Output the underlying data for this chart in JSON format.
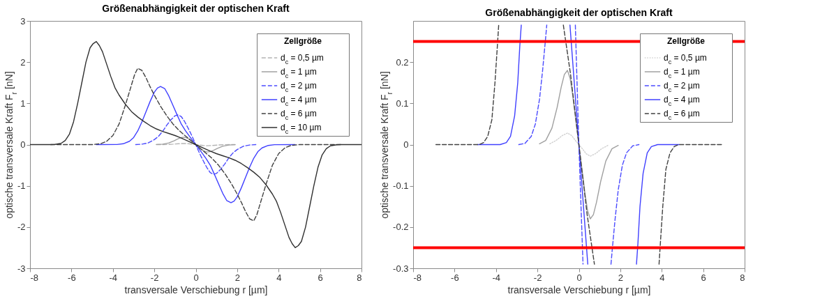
{
  "chart_data": [
    {
      "type": "line",
      "title": "Größenabhängigkeit der optischen Kraft",
      "xlabel": "transversale Verschiebung r [µm]",
      "ylabel": "optische transversale Kraft F$_{r}$ [nN]",
      "legend_title": "Zellgröße",
      "legend": "top right",
      "grid": false,
      "xlim": [
        -8,
        8
      ],
      "xticks": [
        -8,
        -6,
        -4,
        -2,
        0,
        2,
        4,
        6,
        8
      ],
      "ylim": [
        -3,
        3
      ],
      "yticks": [
        -3,
        -2,
        -1,
        0,
        1,
        2,
        3
      ],
      "series": [
        {
          "name": "d$_{c}$ = 0,5 µm",
          "color": "#b4b4b4",
          "line_style": "dashed",
          "x": [
            -1.9,
            -1.4,
            -1.1,
            -0.8,
            -0.55,
            -0.35,
            -0.2,
            0,
            0.2,
            0.35,
            0.55,
            0.8,
            1.1,
            1.4,
            1.9
          ],
          "values": [
            0,
            0.002,
            0.01,
            0.022,
            0.028,
            0.022,
            0.012,
            0,
            -0.012,
            -0.022,
            -0.028,
            -0.022,
            -0.01,
            -0.002,
            0
          ]
        },
        {
          "name": "d$_{c}$ = 1 µm",
          "color": "#a0a0a0",
          "line_style": "solid",
          "x": [
            -1.9,
            -1.6,
            -1.3,
            -1.05,
            -0.85,
            -0.7,
            -0.55,
            -0.42,
            -0.3,
            -0.15,
            0,
            0.15,
            0.3,
            0.42,
            0.55,
            0.7,
            0.85,
            1.05,
            1.3,
            1.6,
            1.9
          ],
          "values": [
            0.002,
            0.01,
            0.04,
            0.09,
            0.14,
            0.17,
            0.18,
            0.16,
            0.12,
            0.06,
            0,
            -0.06,
            -0.12,
            -0.16,
            -0.18,
            -0.17,
            -0.14,
            -0.09,
            -0.04,
            -0.01,
            -0.002
          ]
        },
        {
          "name": "d$_{c}$ = 2 µm",
          "color": "#4b4bff",
          "line_style": "dashed",
          "x": [
            -2.9,
            -2.6,
            -2.3,
            -2.0,
            -1.8,
            -1.6,
            -1.4,
            -1.2,
            -1.0,
            -0.85,
            -0.7,
            -0.55,
            -0.4,
            -0.25,
            -0.12,
            0,
            0.12,
            0.25,
            0.4,
            0.55,
            0.7,
            0.85,
            1.0,
            1.2,
            1.4,
            1.6,
            1.8,
            2.0,
            2.3,
            2.6,
            2.9
          ],
          "values": [
            0,
            0.01,
            0.04,
            0.12,
            0.2,
            0.32,
            0.47,
            0.6,
            0.7,
            0.72,
            0.68,
            0.57,
            0.43,
            0.28,
            0.14,
            0,
            -0.14,
            -0.28,
            -0.43,
            -0.57,
            -0.68,
            -0.72,
            -0.7,
            -0.6,
            -0.47,
            -0.32,
            -0.2,
            -0.12,
            -0.04,
            -0.01,
            0
          ]
        },
        {
          "name": "d$_{c}$ = 4 µm",
          "color": "#4040ff",
          "line_style": "solid",
          "x": [
            -4.8,
            -3.8,
            -3.5,
            -3.2,
            -3.0,
            -2.8,
            -2.6,
            -2.4,
            -2.2,
            -2.0,
            -1.85,
            -1.7,
            -1.5,
            -1.3,
            -1.1,
            -0.9,
            -0.7,
            -0.5,
            -0.3,
            -0.15,
            0,
            0.15,
            0.3,
            0.5,
            0.7,
            0.9,
            1.1,
            1.3,
            1.5,
            1.7,
            1.85,
            2.0,
            2.2,
            2.4,
            2.6,
            2.8,
            3.0,
            3.2,
            3.5,
            3.8,
            4.8
          ],
          "values": [
            0,
            0.002,
            0.02,
            0.08,
            0.17,
            0.33,
            0.55,
            0.8,
            1.05,
            1.27,
            1.37,
            1.41,
            1.36,
            1.18,
            0.95,
            0.72,
            0.5,
            0.34,
            0.2,
            0.1,
            0,
            -0.1,
            -0.2,
            -0.34,
            -0.5,
            -0.72,
            -0.95,
            -1.18,
            -1.36,
            -1.41,
            -1.37,
            -1.27,
            -1.05,
            -0.8,
            -0.55,
            -0.33,
            -0.17,
            -0.08,
            -0.02,
            -0.002,
            0
          ]
        },
        {
          "name": "d$_{c}$ = 6 µm",
          "color": "#404040",
          "line_style": "dashed",
          "x": [
            -7,
            -5,
            -4.6,
            -4.3,
            -4.0,
            -3.7,
            -3.4,
            -3.1,
            -2.95,
            -2.8,
            -2.6,
            -2.4,
            -2.2,
            -2.0,
            -1.7,
            -1.4,
            -1.1,
            -0.8,
            -0.5,
            -0.25,
            0,
            0.25,
            0.5,
            0.8,
            1.1,
            1.4,
            1.7,
            2.0,
            2.2,
            2.4,
            2.6,
            2.8,
            2.95,
            3.1,
            3.4,
            3.7,
            4.0,
            4.3,
            4.6,
            5,
            7
          ],
          "values": [
            0,
            0,
            0.02,
            0.08,
            0.22,
            0.5,
            0.95,
            1.45,
            1.7,
            1.85,
            1.8,
            1.62,
            1.4,
            1.2,
            0.93,
            0.7,
            0.5,
            0.34,
            0.21,
            0.11,
            0,
            -0.11,
            -0.21,
            -0.34,
            -0.5,
            -0.7,
            -0.93,
            -1.2,
            -1.4,
            -1.62,
            -1.8,
            -1.85,
            -1.7,
            -1.45,
            -0.95,
            -0.5,
            -0.22,
            -0.08,
            -0.02,
            0,
            0
          ]
        },
        {
          "name": "d$_{c}$ = 10 µm",
          "color": "#303030",
          "line_style": "solid",
          "x": [
            -8,
            -7,
            -6.8,
            -6.5,
            -6.3,
            -6.1,
            -5.9,
            -5.7,
            -5.5,
            -5.3,
            -5.1,
            -4.95,
            -4.8,
            -4.65,
            -4.5,
            -4.3,
            -4.1,
            -3.9,
            -3.7,
            -3.4,
            -3.1,
            -2.8,
            -2.5,
            -2.2,
            -1.9,
            -1.6,
            -1.3,
            -1,
            -0.7,
            -0.4,
            0,
            0.4,
            0.7,
            1,
            1.3,
            1.6,
            1.9,
            2.2,
            2.5,
            2.8,
            3.1,
            3.4,
            3.7,
            3.9,
            4.1,
            4.3,
            4.5,
            4.65,
            4.8,
            4.95,
            5.1,
            5.3,
            5.5,
            5.7,
            5.9,
            6.1,
            6.3,
            6.5,
            6.8,
            7,
            8
          ],
          "values": [
            0,
            0,
            0.005,
            0.03,
            0.1,
            0.25,
            0.55,
            1.0,
            1.5,
            2.0,
            2.35,
            2.45,
            2.5,
            2.4,
            2.25,
            1.95,
            1.65,
            1.38,
            1.2,
            0.98,
            0.8,
            0.67,
            0.56,
            0.46,
            0.38,
            0.32,
            0.27,
            0.22,
            0.16,
            0.09,
            0,
            -0.09,
            -0.16,
            -0.22,
            -0.27,
            -0.32,
            -0.38,
            -0.46,
            -0.56,
            -0.67,
            -0.8,
            -0.98,
            -1.2,
            -1.38,
            -1.65,
            -1.95,
            -2.25,
            -2.4,
            -2.5,
            -2.45,
            -2.35,
            -2.0,
            -1.5,
            -1.0,
            -0.55,
            -0.25,
            -0.1,
            -0.03,
            -0.005,
            0,
            0
          ]
        }
      ]
    },
    {
      "type": "line",
      "title": "Größenabhängigkeit der optischen Kraft",
      "xlabel": "transversale Verschiebung r [µm]",
      "ylabel": "optische transversale Kraft F$_{r}$ [nN]",
      "legend_title": "Zellgröße",
      "legend": "top right",
      "grid": false,
      "xlim": [
        -8,
        8
      ],
      "xticks": [
        -8,
        -6,
        -4,
        -2,
        0,
        2,
        4,
        6,
        8
      ],
      "ylim": [
        -0.3,
        0.3
      ],
      "yticks": [
        -0.3,
        -0.2,
        -0.1,
        0,
        0.1,
        0.2
      ],
      "ref_lines": [
        {
          "axis": "y",
          "value": 0.25,
          "color": "#ff0000"
        },
        {
          "axis": "y",
          "value": -0.25,
          "color": "#ff0000"
        }
      ],
      "series": [
        {
          "name": "d$_{c}$ = 0,5 µm",
          "color": "#d0d0d0",
          "line_style": "dotted",
          "x": [
            -1.4,
            -1.1,
            -0.8,
            -0.55,
            -0.35,
            -0.2,
            0,
            0.2,
            0.35,
            0.55,
            0.8,
            1.1,
            1.4
          ],
          "values": [
            0.002,
            0.01,
            0.022,
            0.028,
            0.022,
            0.012,
            0,
            -0.012,
            -0.022,
            -0.028,
            -0.022,
            -0.01,
            -0.002
          ]
        },
        {
          "name": "d$_{c}$ = 1 µm",
          "color": "#a0a0a0",
          "line_style": "solid",
          "x": [
            -1.9,
            -1.6,
            -1.3,
            -1.05,
            -0.85,
            -0.7,
            -0.55,
            -0.42,
            -0.3,
            -0.15,
            0,
            0.15,
            0.3,
            0.42,
            0.55,
            0.7,
            0.85,
            1.05,
            1.3,
            1.6,
            1.9
          ],
          "values": [
            0.002,
            0.01,
            0.04,
            0.09,
            0.14,
            0.17,
            0.18,
            0.16,
            0.12,
            0.06,
            0,
            -0.06,
            -0.12,
            -0.16,
            -0.18,
            -0.17,
            -0.14,
            -0.09,
            -0.04,
            -0.01,
            -0.002
          ]
        },
        {
          "name": "d$_{c}$ = 2 µm",
          "color": "#4b4bff",
          "line_style": "dashed",
          "x": [
            -2.9,
            -2.6,
            -2.3,
            -2.1,
            -1.9,
            -1.75,
            -1.62,
            -1.55,
            -0.9,
            -0.17,
            0,
            0.2,
            0.9,
            1.55,
            1.62,
            1.75,
            1.9,
            2.1,
            2.3,
            2.6,
            2.9
          ],
          "values": [
            0,
            0.003,
            0.02,
            0.05,
            0.11,
            0.18,
            0.25,
            0.29,
            null,
            0.29,
            0,
            -0.29,
            null,
            -0.29,
            -0.25,
            -0.18,
            -0.11,
            -0.05,
            -0.02,
            -0.003,
            0
          ]
        },
        {
          "name": "d$_{c}$ = 4 µm",
          "color": "#4040ff",
          "line_style": "solid",
          "x": [
            -4.9,
            -3.8,
            -3.5,
            -3.3,
            -3.1,
            -2.95,
            -2.85,
            -2.78,
            -1.5,
            -0.43,
            0,
            0.43,
            1.5,
            2.78,
            2.85,
            2.95,
            3.1,
            3.3,
            3.5,
            3.8,
            4.85
          ],
          "values": [
            0,
            0,
            0.005,
            0.02,
            0.07,
            0.15,
            0.24,
            0.29,
            null,
            0.29,
            0,
            -0.29,
            null,
            -0.29,
            -0.24,
            -0.15,
            -0.07,
            -0.02,
            -0.005,
            0,
            0
          ]
        },
        {
          "name": "d$_{c}$ = 6 µm",
          "color": "#404040",
          "line_style": "dashed",
          "x": [
            -6.9,
            -4.8,
            -4.6,
            -4.4,
            -4.2,
            -4.05,
            -3.92,
            -3.87,
            -2,
            -0.75,
            -0.4,
            0,
            0.4,
            0.75,
            2,
            3.87,
            3.92,
            4.05,
            4.2,
            4.4,
            4.6,
            4.8,
            6.9
          ],
          "values": [
            0,
            0,
            0.005,
            0.02,
            0.06,
            0.15,
            0.25,
            0.29,
            null,
            0.29,
            0.17,
            0,
            -0.17,
            -0.29,
            null,
            -0.29,
            -0.25,
            -0.15,
            -0.06,
            -0.02,
            -0.005,
            0,
            0
          ]
        }
      ]
    }
  ]
}
